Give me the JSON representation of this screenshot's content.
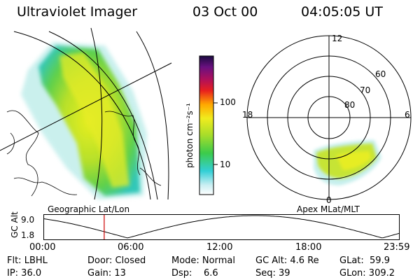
{
  "header": {
    "title": "Ultraviolet Imager",
    "date": "03 Oct 00",
    "time": "04:05:05 UT"
  },
  "colorbar": {
    "unit_label": "photon cm⁻²s⁻¹",
    "ticks": [
      "100",
      "10"
    ]
  },
  "geo_panel": {
    "caption": "Geographic Lat/Lon"
  },
  "polar_panel": {
    "caption": "Apex MLat/MLT",
    "mlt_labels": {
      "top": "12",
      "left": "18",
      "right": "6",
      "bottom": "0"
    },
    "lat_labels": [
      "60",
      "70",
      "80"
    ]
  },
  "altitude_plot": {
    "ylabel": "GC Alt",
    "yticks": [
      "9.0",
      "1.8"
    ],
    "xticks": [
      "00:00",
      "06:00",
      "12:00",
      "18:00",
      "23:59"
    ],
    "marker_hour": 4.08,
    "marker_color": "#cc0000"
  },
  "info": {
    "row1": [
      "Flt: LBHL",
      "Door: Closed",
      "Mode: Normal",
      "GC Alt: 4.6 Re",
      "GLat:  59.9"
    ],
    "row2": [
      "IP: 36.0",
      "Gain: 13",
      "Dsp:    6.6",
      "Seq: 39",
      "GLon: 309.2"
    ]
  }
}
